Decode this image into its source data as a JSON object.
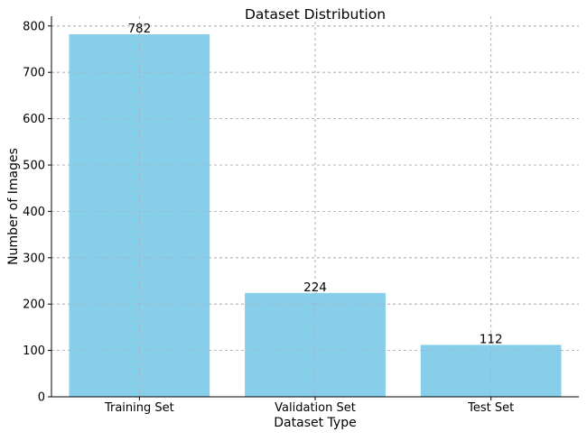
{
  "chart_data": {
    "type": "bar",
    "title": "Dataset Distribution",
    "xlabel": "Dataset Type",
    "ylabel": "Number of Images",
    "categories": [
      "Training Set",
      "Validation Set",
      "Test Set"
    ],
    "values": [
      782,
      224,
      112
    ],
    "data_labels": [
      "782",
      "224",
      "112"
    ],
    "ylim": [
      0,
      821
    ],
    "yticks": [
      0,
      100,
      200,
      300,
      400,
      500,
      600,
      700,
      800
    ],
    "ytick_labels": [
      "0",
      "100",
      "200",
      "300",
      "400",
      "500",
      "600",
      "700",
      "800"
    ],
    "grid": true,
    "bar_color": "#87ceeb"
  }
}
